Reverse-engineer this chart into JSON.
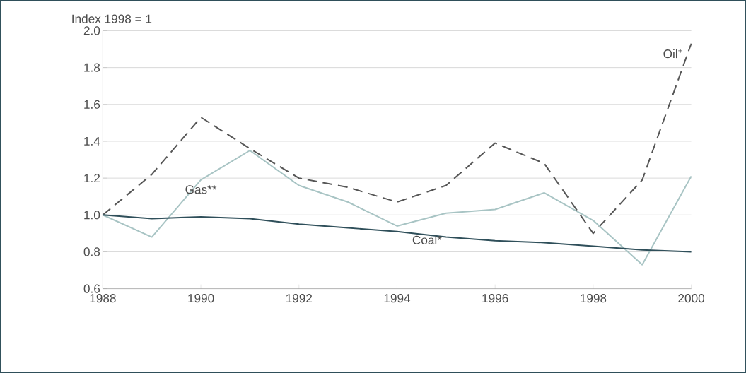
{
  "chart_data": {
    "type": "line",
    "ylabel": "Index 1998 = 1",
    "x": [
      1988,
      1989,
      1990,
      1991,
      1992,
      1993,
      1994,
      1995,
      1996,
      1997,
      1998,
      1999,
      2000
    ],
    "xlim": [
      1988,
      2000
    ],
    "xticks": [
      1988,
      1990,
      1992,
      1994,
      1996,
      1998,
      2000
    ],
    "ylim": [
      0.6,
      2.0
    ],
    "yticks": [
      {
        "value": 0.6,
        "label": "0.6"
      },
      {
        "value": 0.8,
        "label": "0.8"
      },
      {
        "value": 1.0,
        "label": "1.0"
      },
      {
        "value": 1.2,
        "label": "1.2"
      },
      {
        "value": 1.4,
        "label": "1.4"
      },
      {
        "value": 1.6,
        "label": "1.6"
      },
      {
        "value": 1.8,
        "label": "1.8"
      },
      {
        "value": 2.0,
        "label": "2.0"
      }
    ],
    "grid": "y",
    "marker": "none",
    "series": [
      {
        "name": "Oil$^{+}$",
        "color": "#555555",
        "line_style": "dashed",
        "values": [
          1.0,
          1.22,
          1.53,
          1.36,
          1.2,
          1.15,
          1.07,
          1.16,
          1.39,
          1.28,
          0.9,
          1.19,
          1.93
        ]
      },
      {
        "name": "Gas**",
        "color": "#a8c4c4",
        "line_style": "solid",
        "values": [
          1.0,
          0.88,
          1.19,
          1.35,
          1.16,
          1.07,
          0.94,
          1.01,
          1.03,
          1.12,
          0.97,
          0.73,
          1.21
        ]
      },
      {
        "name": "Coal*",
        "color": "#2f4f5a",
        "line_style": "solid",
        "values": [
          1.0,
          0.98,
          0.99,
          0.98,
          0.95,
          0.93,
          0.91,
          0.88,
          0.86,
          0.85,
          0.83,
          0.81,
          0.8
        ]
      }
    ]
  }
}
